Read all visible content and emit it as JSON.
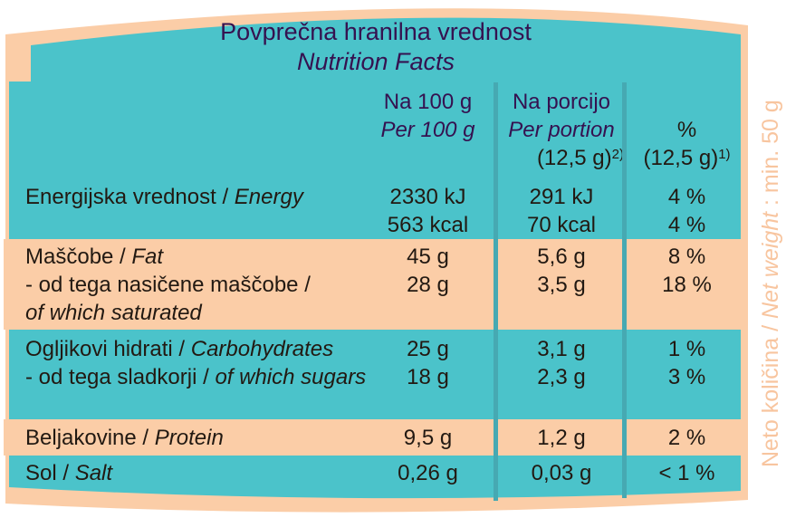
{
  "colors": {
    "peach": "#FBCDA7",
    "teal": "#4BC3CA",
    "divider_teal": "#46A9B2",
    "heading_purple": "#351250",
    "ink": "#221912",
    "side_note_peach": "#F8C59F"
  },
  "title": {
    "sl": "Povprečna hranilna vrednost",
    "en": "Nutrition Facts"
  },
  "header": {
    "per100": {
      "line1": "Na 100 g",
      "line2": "Per 100 g"
    },
    "portion": {
      "line1": "Na porcijo",
      "line2": "Per portion",
      "line3_base": "(12,5 g)",
      "line3_sup": "2)"
    },
    "percent": {
      "line1": "%",
      "line2_base": "(12,5 g)",
      "line2_sup": "1)"
    }
  },
  "sections": [
    {
      "name": "energy",
      "bg": "teal",
      "label_lines": [
        [
          {
            "t": "Energijska vrednost / "
          },
          {
            "t": "Energy",
            "i": true
          }
        ]
      ],
      "per100": [
        "2330 kJ",
        "563 kcal"
      ],
      "portion": [
        "291 kJ",
        "70 kcal"
      ],
      "percent": [
        "4 %",
        "4 %"
      ]
    },
    {
      "name": "fat-group",
      "bg": "peach",
      "label_lines": [
        [
          {
            "t": "Maščobe / "
          },
          {
            "t": "Fat",
            "i": true
          }
        ],
        [
          {
            "t": "- od tega nasičene maščobe /"
          }
        ],
        [
          {
            "t": "of which saturated",
            "i": true
          }
        ]
      ],
      "per100": [
        "45 g",
        "28 g"
      ],
      "portion": [
        "5,6 g",
        "3,5 g"
      ],
      "percent": [
        "8 %",
        "18 %"
      ]
    },
    {
      "name": "carbs-group",
      "bg": "teal",
      "label_lines": [
        [
          {
            "t": "Ogljikovi hidrati / "
          },
          {
            "t": "Carbohydrates",
            "i": true
          }
        ],
        [
          {
            "t": "- od tega sladkorji / "
          },
          {
            "t": "of which sugars",
            "i": true
          }
        ]
      ],
      "per100": [
        "25 g",
        "18 g"
      ],
      "portion": [
        "3,1 g",
        "2,3 g"
      ],
      "percent": [
        "1 %",
        "3 %"
      ]
    },
    {
      "name": "protein",
      "bg": "peach",
      "label_lines": [
        [
          {
            "t": "Beljakovine / "
          },
          {
            "t": "Protein",
            "i": true
          }
        ]
      ],
      "per100": [
        "9,5 g"
      ],
      "portion": [
        "1,2 g"
      ],
      "percent": [
        "2 %"
      ]
    },
    {
      "name": "salt",
      "bg": "teal",
      "label_lines": [
        [
          {
            "t": "Sol / "
          },
          {
            "t": "Salt",
            "i": true
          }
        ]
      ],
      "per100": [
        "0,26 g"
      ],
      "portion": [
        "0,03 g"
      ],
      "percent": [
        "< 1 %"
      ]
    }
  ],
  "side_note": {
    "sl": "Neto količina / ",
    "en": "Net weight",
    "rest": " : min. 50 g"
  }
}
